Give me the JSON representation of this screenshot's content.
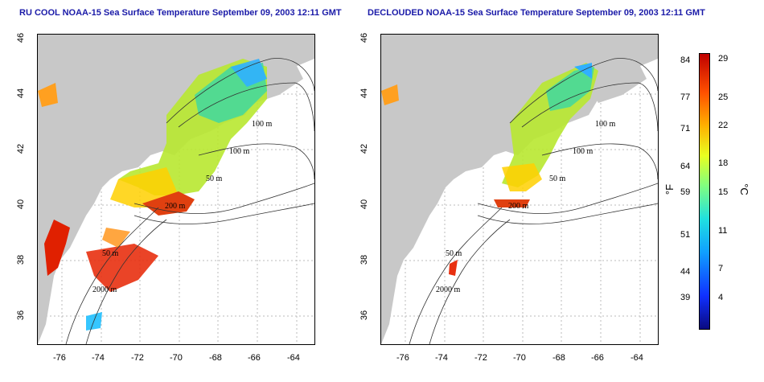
{
  "titles": {
    "left": "RU COOL NOAA-15 Sea Surface Temperature September 09, 2003 12:11 GMT",
    "right": "DECLOUDED NOAA-15 Sea Surface Temperature September 09, 2003 12:11 GMT"
  },
  "axes": {
    "lon_labels": [
      "-76",
      "-74",
      "-72",
      "-70",
      "-68",
      "-66",
      "-64"
    ],
    "lat_labels": [
      "46",
      "44",
      "42",
      "40",
      "38",
      "36"
    ]
  },
  "contours": {
    "left": [
      "100 m",
      "100 m",
      "50 m",
      "200 m",
      "50 m",
      "2000 m"
    ],
    "right": [
      "100 m",
      "100 m",
      "50 m",
      "200 m",
      "50 m",
      "2000 m"
    ]
  },
  "colorbar": {
    "fahrenheit_ticks": [
      "84",
      "77",
      "71",
      "64",
      "59",
      "51",
      "44",
      "39"
    ],
    "celsius_ticks": [
      "29",
      "25",
      "22",
      "18",
      "15",
      "11",
      "7",
      "4"
    ],
    "unit_f": "°F",
    "unit_c": "°C"
  },
  "colors": {
    "land": "#c8c8c8",
    "title": "#1a1aa8"
  }
}
